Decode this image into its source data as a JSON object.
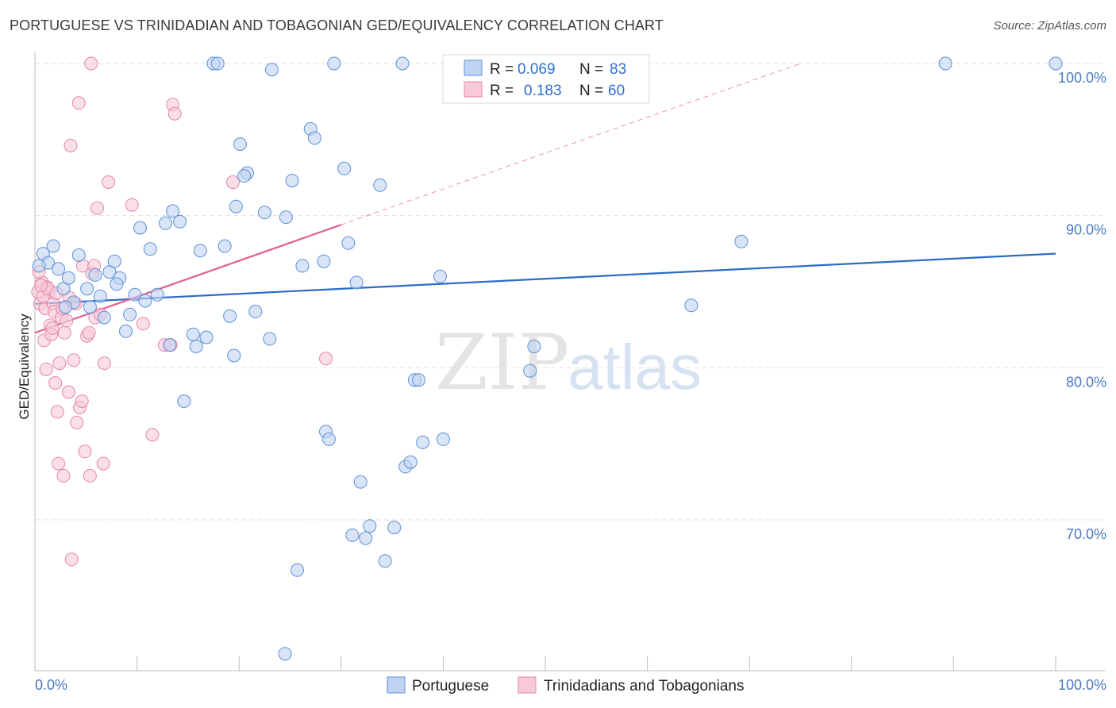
{
  "header": {
    "title": "PORTUGUESE VS TRINIDADIAN AND TOBAGONIAN GED/EQUIVALENCY CORRELATION CHART",
    "source": "Source: ZipAtlas.com"
  },
  "watermark": {
    "zip": "ZIP",
    "atlas": "atlas"
  },
  "colors": {
    "blue": "#5b8fd6",
    "blue_fill": "#bfd4f2",
    "blue_line": "#2b6cc4",
    "pink": "#e586a8",
    "pink_fill": "#f8c9d8",
    "pink_line": "#e0608f",
    "grid": "#e2e2e2",
    "axis_text": "#4a78c2"
  },
  "legend_top": {
    "rows": [
      {
        "r_label": "R =",
        "r_value": "0.069",
        "n_label": "N =",
        "n_value": "83"
      },
      {
        "r_label": "R =",
        "r_value": "0.183",
        "n_label": "N =",
        "n_value": "60"
      }
    ]
  },
  "legend_bottom": {
    "items": [
      {
        "label": "Portuguese"
      },
      {
        "label": "Trinidadians and Tobagonians"
      }
    ]
  },
  "chart_data": {
    "type": "scatter",
    "title": "PORTUGUESE VS TRINIDADIAN AND TOBAGONIAN GED/EQUIVALENCY CORRELATION CHART",
    "xlabel": "",
    "ylabel": "GED/Equivalency",
    "xlim": [
      0,
      100
    ],
    "ylim": [
      60.5,
      101.5
    ],
    "y_ticks": [
      {
        "value": 70,
        "label": "70.0%"
      },
      {
        "value": 80,
        "label": "80.0%"
      },
      {
        "value": 90,
        "label": "90.0%"
      },
      {
        "value": 100,
        "label": "100.0%"
      }
    ],
    "x_ticks": [
      {
        "value": 0,
        "label": "0.0%"
      },
      {
        "value": 100,
        "label": "100.0%"
      }
    ],
    "x_minor_ticks": [
      0,
      10,
      20,
      30,
      40,
      50,
      60,
      70,
      80,
      90,
      100
    ],
    "series": [
      {
        "name": "Portuguese",
        "R": 0.069,
        "N": 83,
        "trend": {
          "x0": 0,
          "y0": 84.2,
          "x1": 100,
          "y1": 87.5,
          "dashed_after": null
        },
        "points": [
          [
            0.8,
            87.5
          ],
          [
            1.3,
            86.9
          ],
          [
            1.8,
            88.0
          ],
          [
            2.3,
            86.5
          ],
          [
            2.8,
            85.2
          ],
          [
            3.3,
            85.9
          ],
          [
            3.8,
            84.3
          ],
          [
            4.3,
            87.4
          ],
          [
            5.1,
            85.2
          ],
          [
            5.4,
            84.0
          ],
          [
            5.9,
            86.1
          ],
          [
            6.4,
            84.7
          ],
          [
            6.8,
            83.3
          ],
          [
            7.3,
            86.3
          ],
          [
            7.8,
            87.0
          ],
          [
            8.3,
            85.9
          ],
          [
            8.9,
            82.4
          ],
          [
            9.3,
            83.5
          ],
          [
            9.8,
            84.8
          ],
          [
            10.3,
            89.2
          ],
          [
            10.8,
            84.4
          ],
          [
            11.3,
            87.8
          ],
          [
            12.0,
            84.8
          ],
          [
            12.8,
            89.5
          ],
          [
            13.2,
            81.5
          ],
          [
            13.5,
            90.3
          ],
          [
            14.2,
            89.6
          ],
          [
            14.6,
            77.8
          ],
          [
            15.5,
            82.2
          ],
          [
            15.8,
            81.4
          ],
          [
            16.2,
            87.7
          ],
          [
            16.8,
            82.0
          ],
          [
            17.5,
            100.0
          ],
          [
            17.9,
            100.0
          ],
          [
            18.6,
            88.0
          ],
          [
            19.1,
            83.4
          ],
          [
            19.5,
            80.8
          ],
          [
            19.7,
            90.6
          ],
          [
            20.1,
            94.7
          ],
          [
            20.8,
            92.8
          ],
          [
            21.6,
            83.7
          ],
          [
            22.5,
            90.2
          ],
          [
            23.0,
            81.9
          ],
          [
            23.2,
            99.6
          ],
          [
            24.6,
            89.9
          ],
          [
            25.2,
            92.3
          ],
          [
            25.7,
            66.7
          ],
          [
            26.2,
            86.7
          ],
          [
            27.0,
            95.7
          ],
          [
            27.4,
            95.1
          ],
          [
            28.3,
            87.0
          ],
          [
            28.5,
            75.8
          ],
          [
            28.8,
            75.3
          ],
          [
            29.3,
            100.0
          ],
          [
            30.3,
            93.1
          ],
          [
            30.7,
            88.2
          ],
          [
            31.1,
            69.0
          ],
          [
            31.5,
            85.6
          ],
          [
            31.9,
            72.5
          ],
          [
            32.4,
            68.8
          ],
          [
            32.8,
            69.6
          ],
          [
            33.8,
            92.0
          ],
          [
            34.3,
            67.3
          ],
          [
            35.2,
            69.5
          ],
          [
            36.0,
            100.0
          ],
          [
            36.3,
            73.5
          ],
          [
            36.8,
            73.8
          ],
          [
            37.2,
            79.2
          ],
          [
            37.6,
            79.2
          ],
          [
            38.0,
            75.1
          ],
          [
            39.7,
            86.0
          ],
          [
            40.0,
            75.3
          ],
          [
            48.5,
            79.8
          ],
          [
            48.9,
            81.4
          ],
          [
            64.3,
            84.1
          ],
          [
            69.2,
            88.3
          ],
          [
            89.2,
            100.0
          ],
          [
            100.0,
            100.0
          ],
          [
            0.4,
            86.7
          ],
          [
            3.0,
            84.0
          ],
          [
            8.0,
            85.5
          ],
          [
            24.5,
            61.2
          ],
          [
            20.5,
            92.6
          ]
        ]
      },
      {
        "name": "Trinidadians and Tobagonians",
        "R": 0.183,
        "N": 60,
        "trend": {
          "x0": 0,
          "y0": 82.3,
          "x1": 30,
          "y1": 89.4,
          "dashed_to": [
            75,
            100.0
          ]
        },
        "points": [
          [
            0.3,
            85.0
          ],
          [
            0.5,
            84.2
          ],
          [
            0.7,
            85.6
          ],
          [
            0.9,
            81.8
          ],
          [
            1.0,
            83.9
          ],
          [
            1.1,
            79.9
          ],
          [
            1.2,
            85.3
          ],
          [
            1.4,
            85.0
          ],
          [
            1.5,
            82.8
          ],
          [
            1.6,
            82.2
          ],
          [
            1.8,
            84.2
          ],
          [
            1.9,
            83.7
          ],
          [
            2.0,
            79.0
          ],
          [
            2.2,
            77.1
          ],
          [
            2.3,
            73.7
          ],
          [
            2.4,
            80.3
          ],
          [
            2.6,
            83.3
          ],
          [
            2.8,
            72.9
          ],
          [
            2.9,
            82.3
          ],
          [
            3.1,
            83.1
          ],
          [
            3.3,
            78.4
          ],
          [
            3.5,
            94.6
          ],
          [
            3.6,
            67.4
          ],
          [
            3.8,
            80.5
          ],
          [
            4.1,
            76.4
          ],
          [
            4.3,
            97.4
          ],
          [
            4.4,
            77.4
          ],
          [
            4.6,
            77.8
          ],
          [
            4.7,
            86.7
          ],
          [
            4.9,
            74.5
          ],
          [
            5.1,
            82.1
          ],
          [
            5.3,
            82.3
          ],
          [
            5.4,
            72.9
          ],
          [
            5.5,
            100.0
          ],
          [
            5.6,
            86.2
          ],
          [
            5.8,
            86.7
          ],
          [
            5.9,
            83.3
          ],
          [
            6.1,
            90.5
          ],
          [
            6.4,
            83.5
          ],
          [
            6.7,
            73.7
          ],
          [
            6.8,
            80.3
          ],
          [
            7.2,
            92.2
          ],
          [
            9.5,
            90.7
          ],
          [
            10.6,
            82.9
          ],
          [
            11.5,
            75.6
          ],
          [
            12.7,
            81.5
          ],
          [
            13.3,
            81.5
          ],
          [
            13.5,
            97.3
          ],
          [
            13.7,
            96.7
          ],
          [
            19.4,
            92.2
          ],
          [
            28.5,
            80.6
          ],
          [
            0.4,
            86.3
          ],
          [
            0.8,
            84.7
          ],
          [
            1.3,
            85.2
          ],
          [
            2.7,
            83.9
          ],
          [
            3.4,
            84.6
          ],
          [
            4.0,
            84.2
          ],
          [
            1.7,
            82.6
          ],
          [
            2.1,
            84.9
          ],
          [
            0.6,
            85.4
          ]
        ]
      }
    ]
  }
}
